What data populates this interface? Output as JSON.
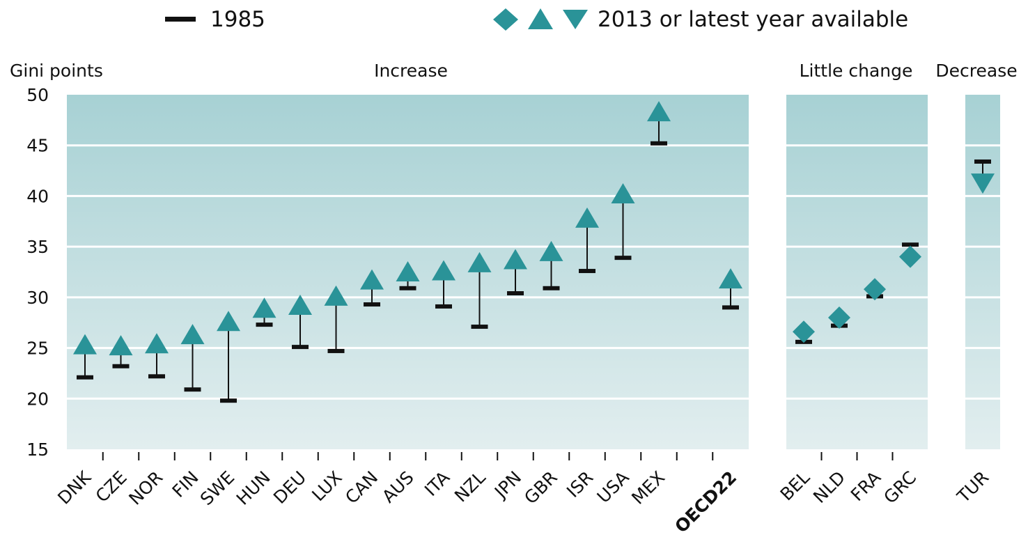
{
  "chart_data": {
    "type": "scatter",
    "ylabel": "Gini points",
    "ylim": [
      15,
      50
    ],
    "yticks": [
      15,
      20,
      25,
      30,
      35,
      40,
      45,
      50
    ],
    "grid": true,
    "legend_position": "top",
    "legend": {
      "series_1985": "1985",
      "series_2013": "2013 or latest year available"
    },
    "colors": {
      "marker": "#2a9398",
      "bar": "#111111",
      "panel_top": "#a7d1d4",
      "panel_bottom": "#e2eeef",
      "grid": "#ffffff"
    },
    "groups": [
      {
        "label": "Increase",
        "categories": [
          {
            "code": "DNK",
            "v1985": 22.1,
            "v2013": 25.2,
            "marker": "up"
          },
          {
            "code": "CZE",
            "v1985": 23.2,
            "v2013": 25.1,
            "marker": "up"
          },
          {
            "code": "NOR",
            "v1985": 22.2,
            "v2013": 25.3,
            "marker": "up"
          },
          {
            "code": "FIN",
            "v1985": 20.9,
            "v2013": 26.2,
            "marker": "up"
          },
          {
            "code": "SWE",
            "v1985": 19.8,
            "v2013": 27.5,
            "marker": "up"
          },
          {
            "code": "HUN",
            "v1985": 27.3,
            "v2013": 28.8,
            "marker": "up"
          },
          {
            "code": "DEU",
            "v1985": 25.1,
            "v2013": 29.1,
            "marker": "up"
          },
          {
            "code": "LUX",
            "v1985": 24.7,
            "v2013": 30.0,
            "marker": "up"
          },
          {
            "code": "CAN",
            "v1985": 29.3,
            "v2013": 31.6,
            "marker": "up"
          },
          {
            "code": "AUS",
            "v1985": 30.9,
            "v2013": 32.4,
            "marker": "up"
          },
          {
            "code": "ITA",
            "v1985": 29.1,
            "v2013": 32.5,
            "marker": "up"
          },
          {
            "code": "NZL",
            "v1985": 27.1,
            "v2013": 33.3,
            "marker": "up"
          },
          {
            "code": "JPN",
            "v1985": 30.4,
            "v2013": 33.6,
            "marker": "up"
          },
          {
            "code": "GBR",
            "v1985": 30.9,
            "v2013": 34.4,
            "marker": "up"
          },
          {
            "code": "ISR",
            "v1985": 32.6,
            "v2013": 37.7,
            "marker": "up"
          },
          {
            "code": "USA",
            "v1985": 33.9,
            "v2013": 40.1,
            "marker": "up"
          },
          {
            "code": "MEX",
            "v1985": 45.2,
            "v2013": 48.2,
            "marker": "up"
          },
          {
            "code": "",
            "v1985": null,
            "v2013": null,
            "marker": "none"
          },
          {
            "code": "OECD22",
            "v1985": 29.0,
            "v2013": 31.7,
            "marker": "up",
            "bold": true
          }
        ]
      },
      {
        "label": "Little change",
        "categories": [
          {
            "code": "BEL",
            "v1985": 25.6,
            "v2013": 26.6,
            "marker": "diamond"
          },
          {
            "code": "NLD",
            "v1985": 27.2,
            "v2013": 28.0,
            "marker": "diamond"
          },
          {
            "code": "FRA",
            "v1985": 30.1,
            "v2013": 30.8,
            "marker": "diamond"
          },
          {
            "code": "GRC",
            "v1985": 35.2,
            "v2013": 34.0,
            "marker": "diamond"
          }
        ]
      },
      {
        "label": "Decrease",
        "categories": [
          {
            "code": "TUR",
            "v1985": 43.4,
            "v2013": 41.4,
            "marker": "down"
          }
        ]
      }
    ]
  }
}
